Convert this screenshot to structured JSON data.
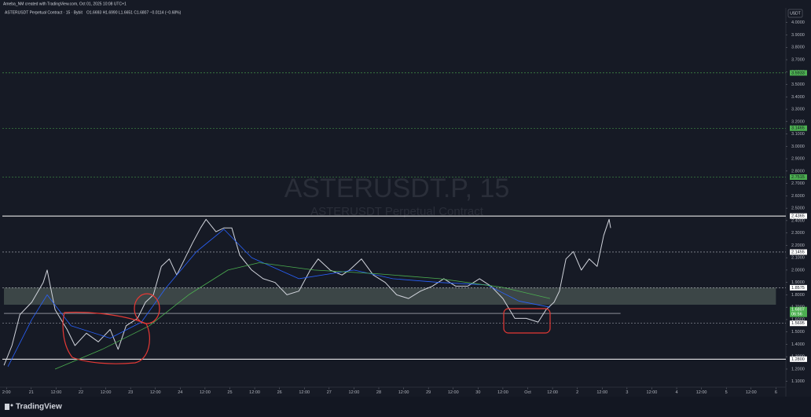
{
  "header": {
    "author": "Ameba_NM created with TradingView.com, Oct 01, 2025 10:08 UTC+1",
    "symbol": "ASTERUSDT Perpetual Contract · 15 · Bybit",
    "ohlc": "O1.6693 H1.6990 L1.6651 C1.6807 −0.0114 (−0.68%)"
  },
  "watermark": {
    "title": "ASTERUSDT.P, 15",
    "subtitle": "ASTERUSDT Perpetual Contract"
  },
  "currency": "USDT",
  "footer": {
    "brand": "TradingView"
  },
  "chart_data": {
    "type": "line",
    "xlim": [
      -0.13,
      15.7
    ],
    "ylim": [
      1.05,
      4.1
    ],
    "xticks": [
      {
        "value": 0,
        "label": "2:00"
      },
      {
        "value": 0.5,
        "label": "21"
      },
      {
        "value": 1,
        "label": "12:00"
      },
      {
        "value": 1.5,
        "label": "22"
      },
      {
        "value": 2,
        "label": "12:00"
      },
      {
        "value": 2.5,
        "label": "23"
      },
      {
        "value": 3,
        "label": "12:00"
      },
      {
        "value": 3.5,
        "label": "24"
      },
      {
        "value": 4,
        "label": "12:00"
      },
      {
        "value": 4.5,
        "label": "25"
      },
      {
        "value": 5,
        "label": "12:00"
      },
      {
        "value": 5.5,
        "label": "26"
      },
      {
        "value": 6,
        "label": "12:00"
      },
      {
        "value": 6.5,
        "label": "27"
      },
      {
        "value": 7,
        "label": "12:00"
      },
      {
        "value": 7.5,
        "label": "28"
      },
      {
        "value": 8,
        "label": "12:00"
      },
      {
        "value": 8.5,
        "label": "29"
      },
      {
        "value": 9,
        "label": "12:00"
      },
      {
        "value": 9.5,
        "label": "30"
      },
      {
        "value": 10,
        "label": "12:00"
      },
      {
        "value": 10.5,
        "label": "Oct"
      },
      {
        "value": 11,
        "label": "12:00"
      },
      {
        "value": 11.5,
        "label": "2"
      },
      {
        "value": 12,
        "label": "12:00"
      },
      {
        "value": 12.5,
        "label": "3"
      },
      {
        "value": 13,
        "label": "12:00"
      },
      {
        "value": 13.5,
        "label": "4"
      },
      {
        "value": 14,
        "label": "12:00"
      },
      {
        "value": 14.5,
        "label": "5"
      },
      {
        "value": 15,
        "label": "12:00"
      },
      {
        "value": 15.5,
        "label": "6"
      }
    ],
    "yticks": [
      {
        "value": 1.1,
        "label": "1.1000"
      },
      {
        "value": 1.2,
        "label": "1.2000"
      },
      {
        "value": 1.3,
        "label": "1.3000"
      },
      {
        "value": 1.4,
        "label": "1.4000"
      },
      {
        "value": 1.5,
        "label": "1.5000"
      },
      {
        "value": 1.6,
        "label": "1.6000"
      },
      {
        "value": 1.7,
        "label": "1.7000"
      },
      {
        "value": 1.8,
        "label": "1.8000"
      },
      {
        "value": 1.9,
        "label": "1.9000"
      },
      {
        "value": 2.0,
        "label": "2.0000"
      },
      {
        "value": 2.1,
        "label": "2.1000"
      },
      {
        "value": 2.2,
        "label": "2.2000"
      },
      {
        "value": 2.3,
        "label": "2.3000"
      },
      {
        "value": 2.4,
        "label": "2.4000"
      },
      {
        "value": 2.5,
        "label": "2.5000"
      },
      {
        "value": 2.6,
        "label": "2.6000"
      },
      {
        "value": 2.7,
        "label": "2.7000"
      },
      {
        "value": 2.8,
        "label": "2.8000"
      },
      {
        "value": 2.9,
        "label": "2.9000"
      },
      {
        "value": 3.0,
        "label": "3.0000"
      },
      {
        "value": 3.1,
        "label": "3.1000"
      },
      {
        "value": 3.2,
        "label": "3.2000"
      },
      {
        "value": 3.3,
        "label": "3.3000"
      },
      {
        "value": 3.4,
        "label": "3.4000"
      },
      {
        "value": 3.5,
        "label": "3.5000"
      },
      {
        "value": 3.6,
        "label": "3.6000"
      },
      {
        "value": 3.7,
        "label": "3.7000"
      },
      {
        "value": 3.8,
        "label": "3.8000"
      },
      {
        "value": 3.9,
        "label": "3.9000"
      },
      {
        "value": 4.0,
        "label": "4.0000"
      }
    ],
    "series": [
      {
        "color": "#d1d4dc",
        "width": 1,
        "x": [
          -0.05,
          0.11,
          0.27,
          0.51,
          0.74,
          0.82,
          0.98,
          1.22,
          1.38,
          1.61,
          1.85,
          2.09,
          2.25,
          2.41,
          2.64,
          2.8,
          2.96,
          3.12,
          3.28,
          3.43,
          3.59,
          3.75,
          3.91,
          4.02,
          4.22,
          4.38,
          4.54,
          4.7,
          4.94,
          5.17,
          5.41,
          5.65,
          5.89,
          6.12,
          6.28,
          6.52,
          6.76,
          6.91,
          7.15,
          7.39,
          7.63,
          7.86,
          8.1,
          8.34,
          8.58,
          8.81,
          9.05,
          9.29,
          9.53,
          9.76,
          10,
          10.24,
          10.47,
          10.71,
          10.87,
          11.03,
          11.14,
          11.27,
          11.42,
          11.58,
          11.74,
          11.9,
          12.03,
          12.14,
          12.17
        ],
        "values": [
          1.23,
          1.39,
          1.64,
          1.74,
          1.9,
          2.0,
          1.68,
          1.52,
          1.39,
          1.49,
          1.42,
          1.52,
          1.36,
          1.55,
          1.61,
          1.74,
          1.8,
          2.03,
          2.09,
          1.96,
          2.09,
          2.22,
          2.34,
          2.41,
          2.31,
          2.34,
          2.34,
          2.12,
          2.0,
          1.93,
          1.9,
          1.8,
          1.83,
          2.0,
          2.09,
          2.0,
          1.96,
          2.0,
          2.09,
          1.96,
          1.9,
          1.8,
          1.77,
          1.83,
          1.87,
          1.93,
          1.87,
          1.87,
          1.93,
          1.87,
          1.77,
          1.61,
          1.61,
          1.58,
          1.68,
          1.74,
          1.83,
          2.09,
          2.15,
          2.0,
          2.09,
          2.03,
          2.28,
          2.41,
          2.34
        ]
      },
      {
        "color": "#2962ff",
        "width": 0.8,
        "x": [
          0.03,
          0.51,
          0.82,
          1.3,
          2.09,
          2.72,
          3.2,
          3.83,
          4.38,
          4.94,
          5.89,
          7.0,
          7.78,
          8.73,
          9.68,
          10.32,
          10.95
        ],
        "values": [
          1.22,
          1.6,
          1.8,
          1.55,
          1.45,
          1.58,
          1.85,
          2.15,
          2.33,
          2.1,
          1.93,
          2.0,
          1.93,
          1.9,
          1.88,
          1.75,
          1.7
        ]
      },
      {
        "color": "#4caf50",
        "width": 0.8,
        "x": [
          0.98,
          1.93,
          2.88,
          3.67,
          4.46,
          5.09,
          6.2,
          7.47,
          8.73,
          10,
          10.95
        ],
        "values": [
          1.2,
          1.36,
          1.55,
          1.8,
          2.0,
          2.06,
          2.0,
          1.97,
          1.93,
          1.86,
          1.77
        ]
      }
    ],
    "levels": [
      {
        "value": 3.5933,
        "label": "3.5933",
        "style": "dashed",
        "color": "#4caf50",
        "label_fill": "#4caf50"
      },
      {
        "value": 3.1465,
        "label": "3.1465",
        "style": "dashed",
        "color": "#4caf50",
        "label_fill": "#4caf50"
      },
      {
        "value": 2.7515,
        "label": "2.7515",
        "style": "dashed",
        "color": "#4caf50",
        "label_fill": "#4caf50"
      },
      {
        "value": 2.4365,
        "label": "2.4365",
        "style": "solid",
        "color": "#ffffff",
        "label_fill": "#ffffff"
      },
      {
        "value": 2.1455,
        "label": "2.1455",
        "style": "dashed",
        "color": "#b2b5be",
        "label_fill": "#ffffff"
      },
      {
        "value": 1.8575,
        "label": "1.8575",
        "style": "dashed",
        "color": "#b2b5be",
        "label_fill": "#ffffff"
      },
      {
        "value": 1.5695,
        "label": "1.5695",
        "style": "dashed",
        "color": "#b2b5be",
        "label_fill": "#ffffff"
      },
      {
        "value": 1.28,
        "label": "1.2800",
        "style": "solid",
        "color": "#ffffff",
        "label_fill": "#ffffff"
      }
    ],
    "zone": {
      "low": 1.72,
      "high": 1.8575,
      "x_start": -0.05,
      "x_end": 15.5,
      "color": "#5d6b64"
    },
    "trend_line": {
      "value": 1.65,
      "x_start": -0.05,
      "x_end": 12.37
    },
    "last_price": {
      "value": 1.6807,
      "label": "1.6807",
      "countdown": "06:56",
      "color": "#4caf50"
    }
  }
}
